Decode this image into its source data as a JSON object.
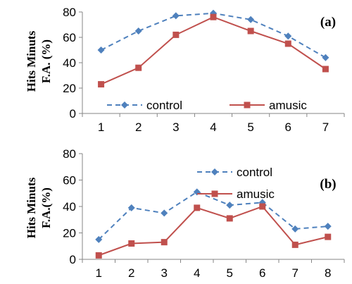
{
  "colors": {
    "control": "#4F81BD",
    "amusic": "#C0504D",
    "axis": "#868686"
  },
  "chart_data": [
    {
      "type": "line",
      "panel_label": "(a)",
      "ylabel_lines": [
        "Hits Minuts",
        "F.A. (%)"
      ],
      "x": [
        1,
        2,
        3,
        4,
        5,
        6,
        7
      ],
      "ylim": [
        0,
        80
      ],
      "yticks": [
        0,
        20,
        40,
        60,
        80
      ],
      "grid": false,
      "legend_position": "bottom",
      "series": [
        {
          "name": "control",
          "style": "dashed",
          "marker": "diamond",
          "values": [
            50,
            65,
            77,
            79,
            74,
            61,
            44
          ]
        },
        {
          "name": "amusic",
          "style": "solid",
          "marker": "square",
          "values": [
            23,
            36,
            62,
            76,
            65,
            55,
            35
          ]
        }
      ]
    },
    {
      "type": "line",
      "panel_label": "(b)",
      "ylabel_lines": [
        "Hits Minuts",
        "F.A.(%)"
      ],
      "x": [
        1,
        2,
        3,
        4,
        5,
        6,
        7,
        8
      ],
      "ylim": [
        0,
        80
      ],
      "yticks": [
        0,
        20,
        40,
        60,
        80
      ],
      "grid": false,
      "legend_position": "top-right",
      "series": [
        {
          "name": "control",
          "style": "dashed",
          "marker": "diamond",
          "values": [
            15,
            39,
            35,
            51,
            41,
            43,
            23,
            25
          ]
        },
        {
          "name": "amusic",
          "style": "solid",
          "marker": "square",
          "values": [
            3,
            12,
            13,
            39,
            31,
            40,
            11,
            17
          ]
        }
      ]
    }
  ]
}
